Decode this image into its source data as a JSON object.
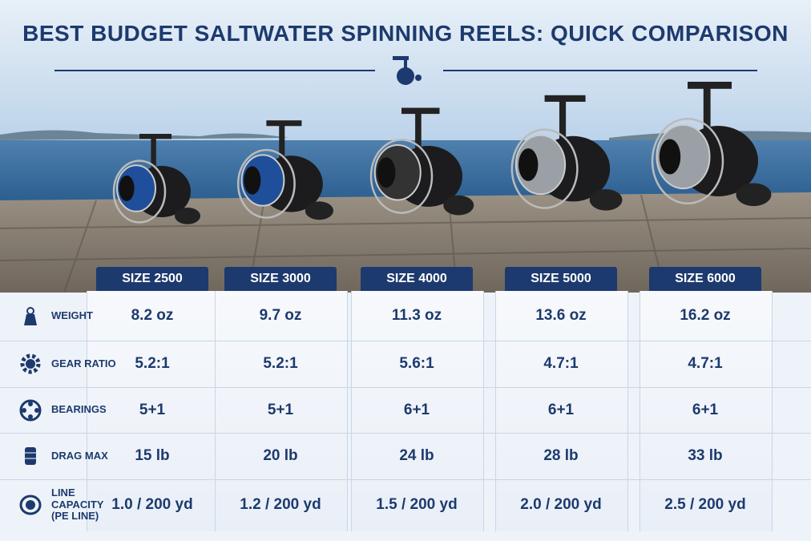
{
  "header": {
    "title": "BEST BUDGET SALTWATER SPINNING REELS: QUICK COMPARISON"
  },
  "table": {
    "columns": [
      "SIZE 2500",
      "SIZE 3000",
      "SIZE 4000",
      "SIZE 5000",
      "SIZE 6000"
    ],
    "rows": [
      {
        "label": "WEIGHT",
        "values": [
          "8.2 oz",
          "9.7 oz",
          "11.3 oz",
          "13.6 oz",
          "16.2 oz"
        ]
      },
      {
        "label": "GEAR RATIO",
        "values": [
          "5.2:1",
          "5.2:1",
          "5.6:1",
          "4.7:1",
          "4.7:1"
        ]
      },
      {
        "label": "BEARINGS",
        "values": [
          "5+1",
          "5+1",
          "6+1",
          "6+1",
          "6+1"
        ]
      },
      {
        "label": "DRAG MAX",
        "values": [
          "15 lb",
          "20 lb",
          "24 lb",
          "28 lb",
          "33 lb"
        ]
      },
      {
        "label": "LINE CAPACITY (PE LINE)",
        "values": [
          "1.0 / 200 yd",
          "1.2 / 200 yd",
          "1.5 / 200 yd",
          "2.0 / 200 yd",
          "2.5 / 200 yd"
        ]
      }
    ]
  }
}
